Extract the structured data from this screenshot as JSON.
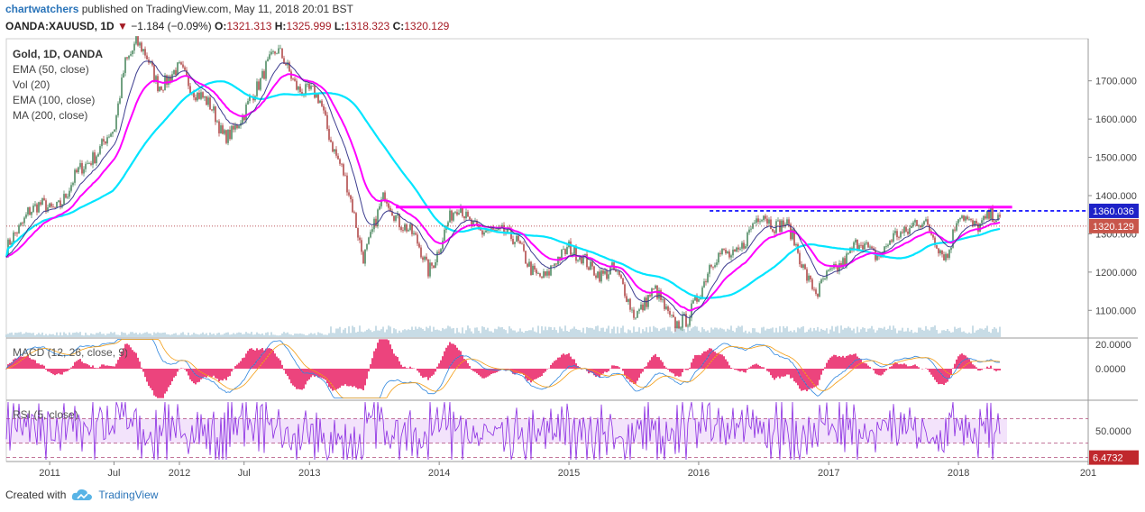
{
  "header": {
    "author": "chartwatchers",
    "published_text": "published on TradingView.com, May 11, 2018 20:01 BST"
  },
  "ohlc": {
    "symbol": "OANDA:XAUUSD, 1D",
    "change": "−1.184 (−0.09%)",
    "o_label": "O:",
    "o": "1321.313",
    "h_label": "H:",
    "h": "1325.999",
    "l_label": "L:",
    "l": "1318.323",
    "c_label": "C:",
    "c": "1320.129"
  },
  "legend": {
    "symbol": "Gold, 1D, OANDA",
    "items": [
      "EMA (50, close)",
      "Vol (20)",
      "EMA (100, close)",
      "MA (200, close)"
    ]
  },
  "macd_label": "MACD (12, 26, close, 9)",
  "rsi_label": "RSI (5, close)",
  "footer": {
    "created_with": "Created with",
    "brand": "TradingView"
  },
  "colors": {
    "up": "#4e8a62",
    "down": "#b24a4a",
    "ema50": "#ff00ff",
    "ema100": "#3d3d8f",
    "ma200": "#00e5ff",
    "resistance": "#ff00ff",
    "dashed": "#0000ff",
    "price_line": "#a51c25",
    "macd_hist": "#e8175d",
    "rsi": "#8a2be2"
  },
  "chart_data": [
    {
      "type": "line",
      "title": "Gold, 1D, OANDA",
      "x": [
        "2010-09",
        "2010-11",
        "2011-01",
        "2011-03",
        "2011-05",
        "2011-07",
        "2011-08",
        "2011-09",
        "2011-11",
        "2012-01",
        "2012-03",
        "2012-05",
        "2012-07",
        "2012-09",
        "2012-10",
        "2012-12",
        "2013-02",
        "2013-04",
        "2013-06",
        "2013-08",
        "2013-10",
        "2013-12",
        "2014-02",
        "2014-03",
        "2014-05",
        "2014-07",
        "2014-09",
        "2014-11",
        "2015-01",
        "2015-03",
        "2015-05",
        "2015-07",
        "2015-09",
        "2015-11",
        "2015-12",
        "2016-02",
        "2016-04",
        "2016-07",
        "2016-09",
        "2016-11",
        "2016-12",
        "2017-02",
        "2017-04",
        "2017-06",
        "2017-09",
        "2017-11",
        "2017-12",
        "2018-01",
        "2018-02",
        "2018-04",
        "2018-05"
      ],
      "series": [
        {
          "name": "close",
          "values": [
            1245,
            1370,
            1360,
            1420,
            1510,
            1560,
            1760,
            1800,
            1700,
            1720,
            1670,
            1560,
            1600,
            1750,
            1770,
            1690,
            1640,
            1470,
            1250,
            1390,
            1320,
            1210,
            1330,
            1380,
            1290,
            1320,
            1230,
            1180,
            1280,
            1200,
            1210,
            1100,
            1140,
            1070,
            1060,
            1230,
            1240,
            1350,
            1320,
            1200,
            1140,
            1230,
            1270,
            1250,
            1340,
            1280,
            1250,
            1340,
            1330,
            1340,
            1320
          ]
        }
      ],
      "y_ticks": [
        "1100.000",
        "1200.000",
        "1300.000",
        "1400.000",
        "1500.000",
        "1600.000",
        "1700.000"
      ],
      "x_ticks": [
        "2011",
        "Jul",
        "2012",
        "Jul",
        "2013",
        "2014",
        "2015",
        "2016",
        "2017",
        "2018",
        "201"
      ],
      "ylim": [
        1030,
        1810
      ],
      "price_labels": [
        "1360.036",
        "1320.129"
      ],
      "resistance_level": 1370,
      "dashed_level": 1360.036,
      "last_price": 1320.129
    },
    {
      "type": "bar",
      "title": "MACD (12, 26, close, 9)",
      "y_ticks": [
        "20.0000",
        "0.0000"
      ],
      "ylim": [
        -25,
        25
      ]
    },
    {
      "type": "line",
      "title": "RSI (5, close)",
      "y_ticks": [
        "50.0000"
      ],
      "levels": [
        70,
        30
      ],
      "price_labels": [
        "6.4732"
      ],
      "ylim": [
        0,
        100
      ]
    }
  ]
}
